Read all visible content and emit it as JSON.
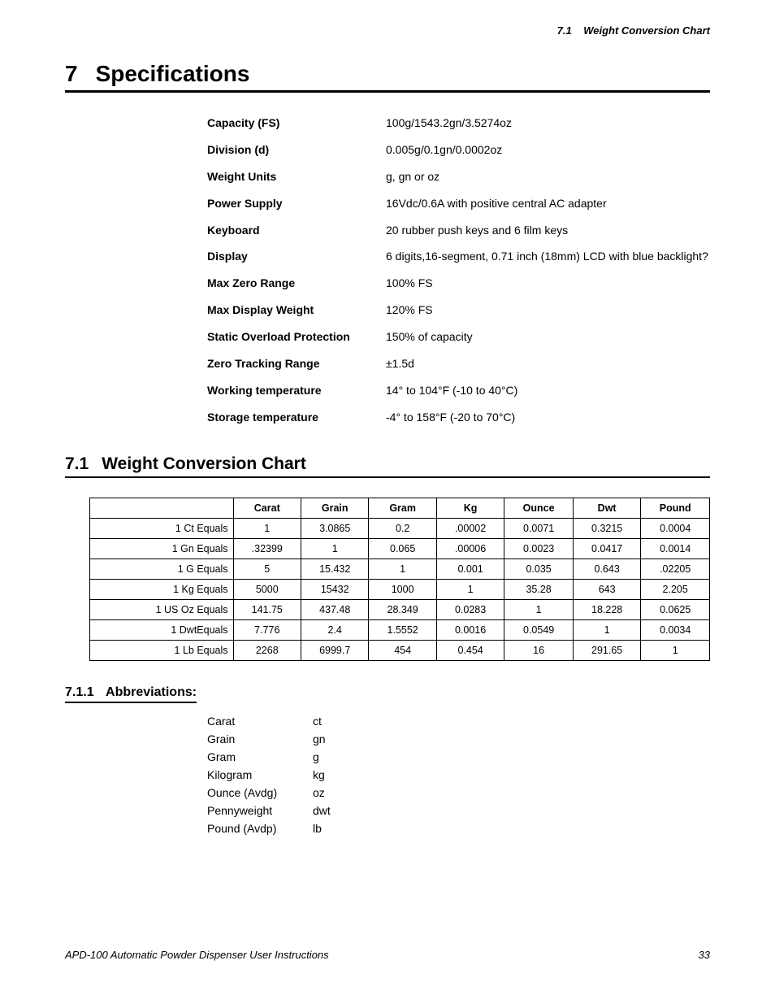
{
  "header": {
    "section_ref": "7.1",
    "section_title": "Weight Conversion Chart"
  },
  "h1": {
    "num": "7",
    "title": "Specifications"
  },
  "specs": [
    {
      "label": "Capacity (FS)",
      "value": "100g/1543.2gn/3.5274oz"
    },
    {
      "label": "Division (d)",
      "value": "0.005g/0.1gn/0.0002oz"
    },
    {
      "label": "Weight Units",
      "value": "g, gn or oz"
    },
    {
      "label": "Power Supply",
      "value": "16Vdc/0.6A with positive central AC adapter"
    },
    {
      "label": "Keyboard",
      "value": "20 rubber push keys and 6 film keys"
    },
    {
      "label": "Display",
      "value": "6 digits,16-segment, 0.71 inch (18mm) LCD with blue backlight?"
    },
    {
      "label": "Max Zero Range",
      "value": "100% FS"
    },
    {
      "label": "Max Display Weight",
      "value": "120% FS"
    },
    {
      "label": "Static Overload Protection",
      "value": "150% of capacity"
    },
    {
      "label": "Zero Tracking Range",
      "value": "±1.5d"
    },
    {
      "label": "Working temperature",
      "value": "14° to 104°F (-10 to 40°C)"
    },
    {
      "label": "Storage temperature",
      "value": "-4° to 158°F (-20 to 70°C)"
    }
  ],
  "h2": {
    "num": "7.1",
    "title": "Weight Conversion Chart"
  },
  "conv": {
    "columns": [
      "",
      "Carat",
      "Grain",
      "Gram",
      "Kg",
      "Ounce",
      "Dwt",
      "Pound"
    ],
    "rows": [
      {
        "label": "1 Ct Equals",
        "cells": [
          "1",
          "3.0865",
          "0.2",
          ".00002",
          "0.0071",
          "0.3215",
          "0.0004"
        ]
      },
      {
        "label": "1 Gn Equals",
        "cells": [
          ".32399",
          "1",
          "0.065",
          ".00006",
          "0.0023",
          "0.0417",
          "0.0014"
        ]
      },
      {
        "label": "1 G Equals",
        "cells": [
          "5",
          "15.432",
          "1",
          "0.001",
          "0.035",
          "0.643",
          ".02205"
        ]
      },
      {
        "label": "1 Kg Equals",
        "cells": [
          "5000",
          "15432",
          "1000",
          "1",
          "35.28",
          "643",
          "2.205"
        ]
      },
      {
        "label": "1 US Oz Equals",
        "cells": [
          "141.75",
          "437.48",
          "28.349",
          "0.0283",
          "1",
          "18.228",
          "0.0625"
        ]
      },
      {
        "label": "1 DwtEquals",
        "cells": [
          "7.776",
          "2.4",
          "1.5552",
          "0.0016",
          "0.0549",
          "1",
          "0.0034"
        ]
      },
      {
        "label": "1 Lb Equals",
        "cells": [
          "2268",
          "6999.7",
          "454",
          "0.454",
          "16",
          "291.65",
          "1"
        ]
      }
    ]
  },
  "h3": {
    "num": "7.1.1",
    "title": "Abbreviations:"
  },
  "abbr": [
    {
      "name": "Carat",
      "code": "ct"
    },
    {
      "name": "Grain",
      "code": "gn"
    },
    {
      "name": "Gram",
      "code": "g"
    },
    {
      "name": "Kilogram",
      "code": "kg"
    },
    {
      "name": "Ounce (Avdg)",
      "code": "oz"
    },
    {
      "name": "Pennyweight",
      "code": "dwt"
    },
    {
      "name": "Pound (Avdp)",
      "code": "lb"
    }
  ],
  "footer": {
    "doc": "APD-100 Automatic Powder Dispenser User Instructions",
    "page": "33"
  }
}
